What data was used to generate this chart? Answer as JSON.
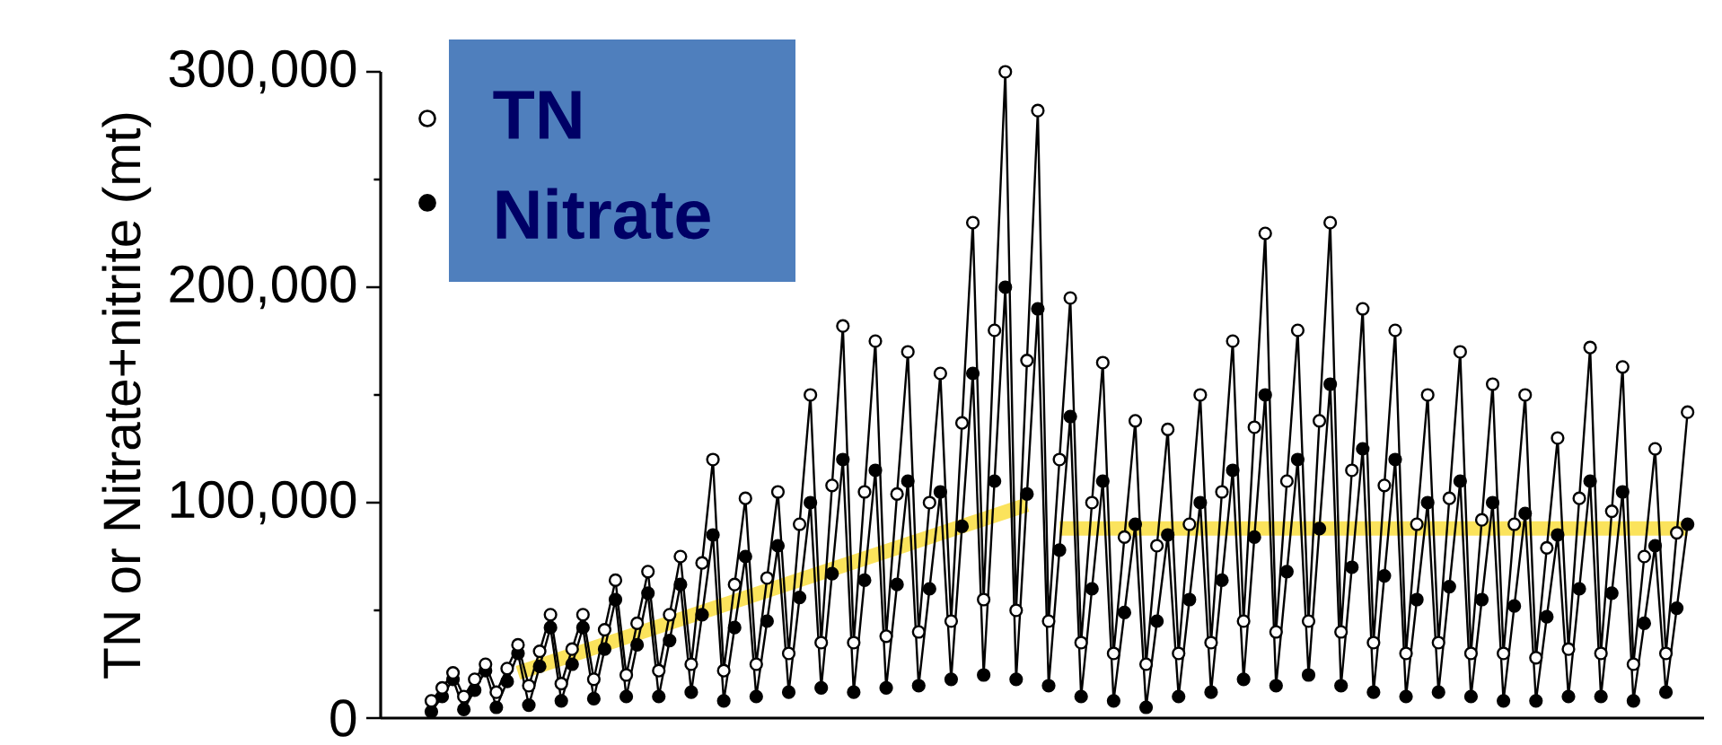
{
  "chart_data": {
    "type": "line",
    "ylabel": "TN or Nitrate+nitrite (mt)",
    "ylim": [
      0,
      300000
    ],
    "yticks": [
      {
        "value": 0,
        "label": "0"
      },
      {
        "value": 100000,
        "label": "100,000"
      },
      {
        "value": 200000,
        "label": "200,000"
      },
      {
        "value": 300000,
        "label": "300,000"
      }
    ],
    "legend": "top left",
    "categories": [
      null,
      null,
      null,
      null,
      null,
      null,
      null,
      null,
      null,
      null,
      null,
      null,
      null,
      null,
      null,
      null,
      null,
      null,
      null,
      null,
      null,
      null,
      null,
      null,
      null,
      null,
      null,
      null,
      null,
      null,
      null,
      null,
      null,
      null,
      null,
      null,
      null,
      null,
      null,
      null,
      null,
      null,
      null,
      null,
      null,
      null,
      null,
      null,
      null,
      null,
      null,
      null,
      null,
      null,
      null,
      null,
      null,
      null,
      null,
      null,
      null,
      null,
      null,
      null,
      null,
      null,
      null,
      null,
      null,
      null,
      null,
      null,
      null,
      null,
      null,
      null,
      null,
      null,
      null,
      null,
      null,
      null,
      null,
      null,
      null,
      null,
      null,
      null,
      null,
      null,
      null,
      null,
      null,
      null,
      null,
      null,
      null,
      null,
      null,
      null,
      null,
      null,
      null,
      null,
      null,
      null,
      null,
      null,
      null,
      null,
      null,
      null,
      null,
      null,
      null,
      null,
      null
    ],
    "series": [
      {
        "name": "TN",
        "marker": "circle",
        "color": "#000000",
        "values": [
          8000,
          14000,
          21000,
          10000,
          18000,
          25000,
          12000,
          23000,
          34000,
          15000,
          31000,
          48000,
          16000,
          32000,
          48000,
          18000,
          41000,
          64000,
          20000,
          44000,
          68000,
          22000,
          48000,
          75000,
          25000,
          72000,
          120000,
          22000,
          62000,
          102000,
          25000,
          65000,
          105000,
          30000,
          90000,
          150000,
          35000,
          108000,
          182000,
          35000,
          105000,
          175000,
          38000,
          104000,
          170000,
          40000,
          100000,
          160000,
          45000,
          137000,
          230000,
          55000,
          180000,
          300000,
          50000,
          166000,
          282000,
          45000,
          120000,
          195000,
          35000,
          100000,
          165000,
          30000,
          84000,
          138000,
          25000,
          80000,
          134000,
          30000,
          90000,
          150000,
          35000,
          105000,
          175000,
          45000,
          135000,
          225000,
          40000,
          110000,
          180000,
          45000,
          138000,
          230000,
          40000,
          115000,
          190000,
          35000,
          108000,
          180000,
          30000,
          90000,
          150000,
          35000,
          102000,
          170000,
          30000,
          92000,
          155000,
          30000,
          90000,
          150000,
          28000,
          79000,
          130000,
          32000,
          102000,
          172000,
          30000,
          96000,
          163000,
          25000,
          75000,
          125000,
          30000,
          86000,
          142000
        ]
      },
      {
        "name": "Nitrate",
        "marker": "circle",
        "color": "#000000",
        "values": [
          3000,
          10000,
          18000,
          4000,
          13000,
          22000,
          5000,
          17000,
          30000,
          6000,
          24000,
          42000,
          8000,
          25000,
          42000,
          9000,
          32000,
          55000,
          10000,
          34000,
          58000,
          10000,
          36000,
          62000,
          12000,
          48000,
          85000,
          8000,
          42000,
          75000,
          10000,
          45000,
          80000,
          12000,
          56000,
          100000,
          14000,
          67000,
          120000,
          12000,
          64000,
          115000,
          14000,
          62000,
          110000,
          15000,
          60000,
          105000,
          18000,
          89000,
          160000,
          20000,
          110000,
          200000,
          18000,
          104000,
          190000,
          15000,
          78000,
          140000,
          10000,
          60000,
          110000,
          8000,
          49000,
          90000,
          5000,
          45000,
          85000,
          10000,
          55000,
          100000,
          12000,
          64000,
          115000,
          18000,
          84000,
          150000,
          15000,
          68000,
          120000,
          20000,
          88000,
          155000,
          15000,
          70000,
          125000,
          12000,
          66000,
          120000,
          10000,
          55000,
          100000,
          12000,
          61000,
          110000,
          10000,
          55000,
          100000,
          8000,
          52000,
          95000,
          8000,
          47000,
          85000,
          10000,
          60000,
          110000,
          10000,
          58000,
          105000,
          8000,
          44000,
          80000,
          12000,
          51000,
          90000
        ]
      },
      {
        "marker": "none",
        "color": "#fbe35c",
        "values": [
          null,
          null,
          null,
          null,
          null,
          null,
          null,
          null,
          21000,
          null,
          null,
          null,
          null,
          null,
          null,
          null,
          null,
          null,
          null,
          null,
          null,
          null,
          null,
          null,
          null,
          null,
          null,
          null,
          null,
          null,
          null,
          null,
          null,
          null,
          null,
          null,
          null,
          null,
          null,
          null,
          null,
          null,
          null,
          null,
          null,
          null,
          null,
          null,
          null,
          null,
          null,
          null,
          null,
          null,
          null,
          99000,
          null,
          null,
          null,
          null,
          null,
          null,
          null,
          null,
          null,
          null,
          null,
          null,
          null,
          null,
          null,
          null,
          null,
          null,
          null,
          null,
          null,
          null,
          null,
          null,
          null,
          null,
          null,
          null,
          null,
          null,
          null,
          null,
          null,
          null,
          null,
          null,
          null,
          null,
          null,
          null,
          null,
          null,
          null,
          null,
          null,
          null,
          null,
          null,
          null,
          null,
          null,
          null,
          null,
          null,
          null,
          null,
          null,
          null,
          null,
          null,
          null
        ]
      },
      {
        "marker": "none",
        "color": "#fbe35c",
        "values": [
          null,
          null,
          null,
          null,
          null,
          null,
          null,
          null,
          null,
          null,
          null,
          null,
          null,
          null,
          null,
          null,
          null,
          null,
          null,
          null,
          null,
          null,
          null,
          null,
          null,
          null,
          null,
          null,
          null,
          null,
          null,
          null,
          null,
          null,
          null,
          null,
          null,
          null,
          null,
          null,
          null,
          null,
          null,
          null,
          null,
          null,
          null,
          null,
          null,
          null,
          null,
          null,
          null,
          null,
          null,
          null,
          null,
          null,
          88000,
          null,
          null,
          null,
          null,
          null,
          null,
          null,
          null,
          null,
          null,
          null,
          null,
          null,
          null,
          null,
          null,
          null,
          null,
          null,
          null,
          null,
          null,
          null,
          null,
          null,
          null,
          null,
          null,
          null,
          null,
          null,
          null,
          null,
          null,
          null,
          null,
          null,
          null,
          null,
          null,
          null,
          null,
          null,
          null,
          null,
          null,
          null,
          null,
          null,
          null,
          null,
          null,
          null,
          null,
          null,
          null,
          null,
          88000
        ]
      }
    ]
  }
}
